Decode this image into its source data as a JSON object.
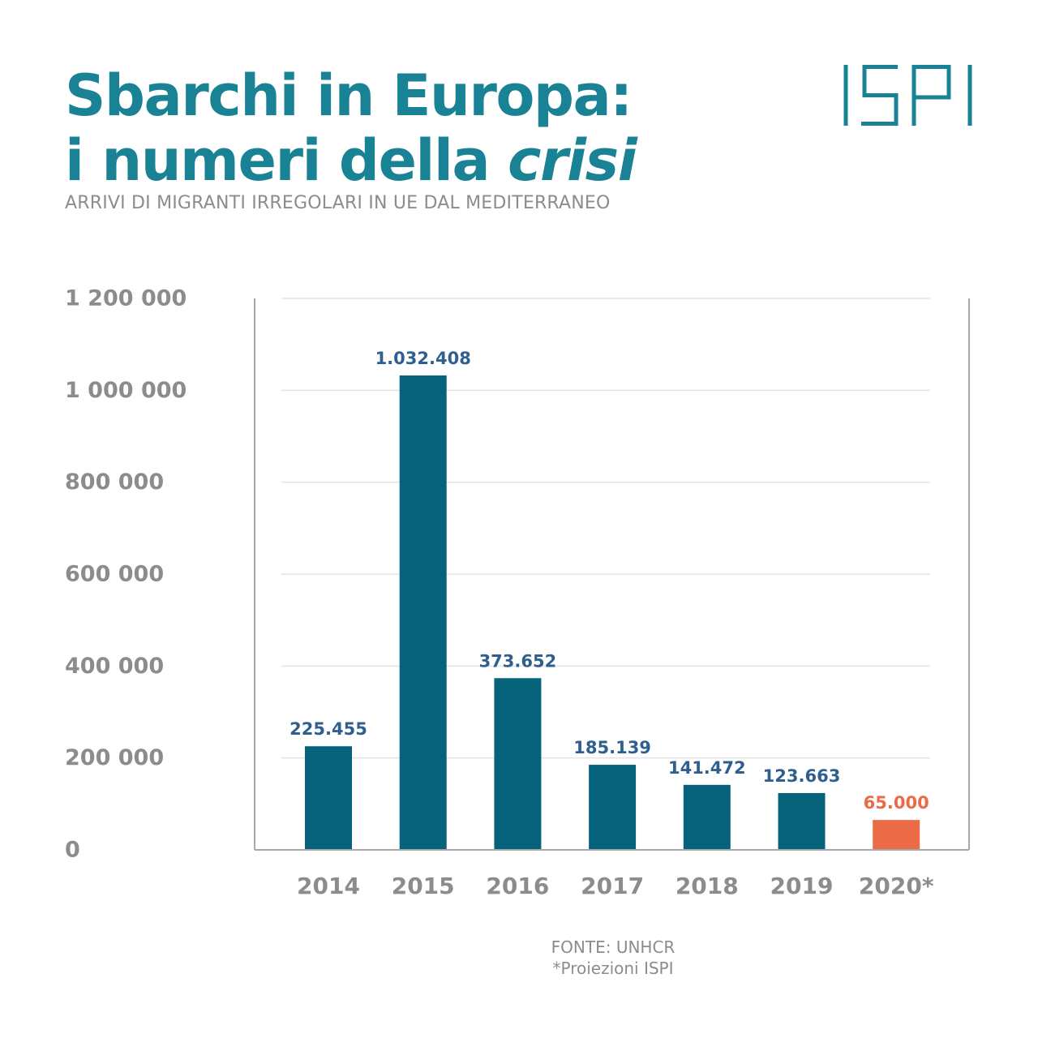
{
  "header": {
    "title_line1": "Sbarchi in Europa:",
    "title_line2_prefix": "i numeri della ",
    "title_line2_emphasis": "crisi",
    "subtitle": "ARRIVI DI MIGRANTI IRREGOLARI IN UE DAL MEDITERRANEO",
    "logo_text": "ISPI"
  },
  "colors": {
    "title": "#1a8295",
    "bar": "#07637b",
    "bar_highlight": "#ec6b47",
    "value_label": "#2e5f8f",
    "value_label_highlight": "#ec6b47",
    "axis_text": "#8c8c8c",
    "gridline": "#e3e3e3",
    "axis_line": "#a8a8a8"
  },
  "chart_data": {
    "type": "bar",
    "categories": [
      "2014",
      "2015",
      "2016",
      "2017",
      "2018",
      "2019",
      "2020*"
    ],
    "values": [
      225455,
      1032408,
      373652,
      185139,
      141472,
      123663,
      65000
    ],
    "value_labels": [
      "225.455",
      "1.032.408",
      "373.652",
      "185.139",
      "141.472",
      "123.663",
      "65.000"
    ],
    "highlight_index": 6,
    "ylim": [
      0,
      1200000
    ],
    "yticks": [
      0,
      200000,
      400000,
      600000,
      800000,
      1000000,
      1200000
    ],
    "ytick_labels": [
      "0",
      "200 000",
      "400 000",
      "600 000",
      "800 000",
      "1 000 000",
      "1 200 000"
    ],
    "grid": true,
    "legend": "none"
  },
  "footer": {
    "source": "FONTE: UNHCR",
    "note": "*Proiezioni ISPI"
  }
}
